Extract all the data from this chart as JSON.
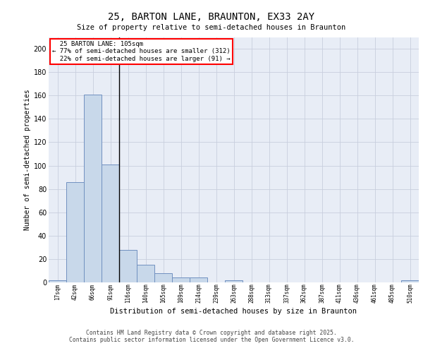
{
  "title_line1": "25, BARTON LANE, BRAUNTON, EX33 2AY",
  "title_line2": "Size of property relative to semi-detached houses in Braunton",
  "xlabel": "Distribution of semi-detached houses by size in Braunton",
  "ylabel": "Number of semi-detached properties",
  "bin_labels": [
    "17sqm",
    "42sqm",
    "66sqm",
    "91sqm",
    "116sqm",
    "140sqm",
    "165sqm",
    "189sqm",
    "214sqm",
    "239sqm",
    "263sqm",
    "288sqm",
    "313sqm",
    "337sqm",
    "362sqm",
    "387sqm",
    "411sqm",
    "436sqm",
    "461sqm",
    "485sqm",
    "510sqm"
  ],
  "bar_values": [
    2,
    86,
    161,
    101,
    28,
    15,
    8,
    4,
    4,
    0,
    2,
    0,
    0,
    0,
    0,
    0,
    0,
    0,
    0,
    0,
    2
  ],
  "bar_color": "#c8d8ea",
  "bar_edge_color": "#7090c0",
  "background_color": "#e8edf6",
  "property_label": "25 BARTON LANE: 105sqm",
  "pct_smaller": 77,
  "count_smaller": 312,
  "pct_larger": 22,
  "count_larger": 91,
  "vline_color": "black",
  "ylim": [
    0,
    210
  ],
  "yticks": [
    0,
    20,
    40,
    60,
    80,
    100,
    120,
    140,
    160,
    180,
    200
  ],
  "footer_line1": "Contains HM Land Registry data © Crown copyright and database right 2025.",
  "footer_line2": "Contains public sector information licensed under the Open Government Licence v3.0.",
  "grid_color": "#c8cede"
}
